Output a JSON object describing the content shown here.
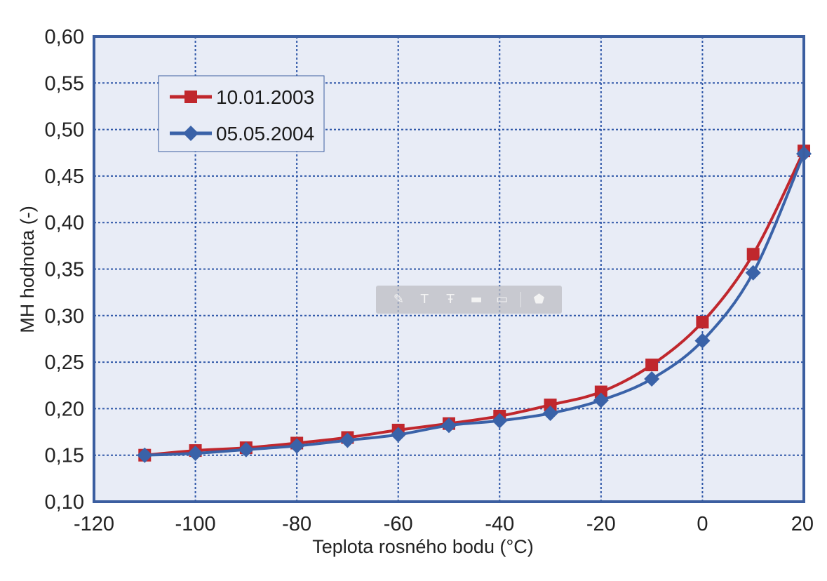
{
  "chart_data": {
    "type": "line",
    "title": "",
    "xlabel": "Teplota rosného bodu (°C)",
    "ylabel": "MH hodnota (-)",
    "xlim": [
      -120,
      20
    ],
    "ylim": [
      0.1,
      0.6
    ],
    "x_ticks": [
      -120,
      -100,
      -80,
      -60,
      -40,
      -20,
      0,
      20
    ],
    "x_tick_labels": [
      "-120",
      "-100",
      "-80",
      "-60",
      "-40",
      "-20",
      "0",
      "20"
    ],
    "y_ticks": [
      0.1,
      0.15,
      0.2,
      0.25,
      0.3,
      0.35,
      0.4,
      0.45,
      0.5,
      0.55,
      0.6
    ],
    "y_tick_labels": [
      "0,10",
      "0,15",
      "0,20",
      "0,25",
      "0,30",
      "0,35",
      "0,40",
      "0,45",
      "0,50",
      "0,55",
      "0,60"
    ],
    "grid": true,
    "legend_position": "top-left",
    "plot_background": "#e8ecf6",
    "frame_color": "#3b5ea0",
    "grid_color": "#2f57a8",
    "series": [
      {
        "name": "10.01.2003",
        "color": "#c0272d",
        "marker": "square",
        "x": [
          -110,
          -100,
          -90,
          -80,
          -70,
          -60,
          -50,
          -40,
          -30,
          -20,
          -10,
          0,
          10,
          20
        ],
        "y": [
          0.15,
          0.155,
          0.158,
          0.163,
          0.169,
          0.177,
          0.184,
          0.192,
          0.204,
          0.218,
          0.247,
          0.293,
          0.366,
          0.477
        ]
      },
      {
        "name": "05.05.2004",
        "color": "#3a62a8",
        "marker": "diamond",
        "x": [
          -110,
          -100,
          -90,
          -80,
          -70,
          -60,
          -50,
          -40,
          -30,
          -20,
          -10,
          0,
          10,
          20
        ],
        "y": [
          0.15,
          0.152,
          0.156,
          0.16,
          0.166,
          0.172,
          0.182,
          0.187,
          0.195,
          0.209,
          0.232,
          0.273,
          0.346,
          0.474
        ]
      }
    ]
  },
  "toolbar": {
    "icons": [
      "pencil-icon",
      "text-icon",
      "text-alt-icon",
      "stamp-icon",
      "box-icon",
      "tag-icon"
    ]
  }
}
